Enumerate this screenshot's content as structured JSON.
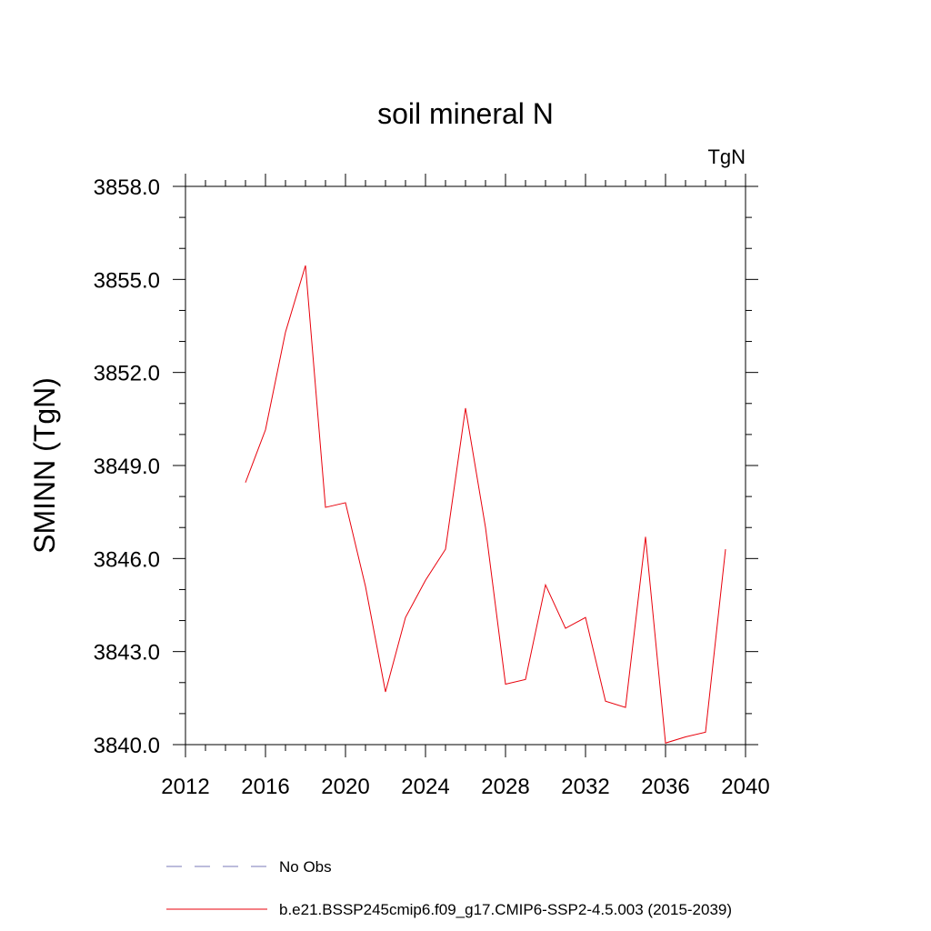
{
  "chart_data": {
    "type": "line",
    "title": "soil mineral N",
    "units": "TgN",
    "xlabel": "",
    "ylabel": "SMINN  (TgN)",
    "xlim": [
      2012,
      2040
    ],
    "ylim": [
      3840.0,
      3858.0
    ],
    "x_ticks": [
      2012,
      2016,
      2020,
      2024,
      2028,
      2032,
      2036,
      2040
    ],
    "x_tick_labels": [
      "2012",
      "2016",
      "2020",
      "2024",
      "2028",
      "2032",
      "2036",
      "2040"
    ],
    "y_ticks": [
      3840.0,
      3843.0,
      3846.0,
      3849.0,
      3852.0,
      3855.0,
      3858.0
    ],
    "y_tick_labels": [
      "3840.0",
      "3843.0",
      "3846.0",
      "3849.0",
      "3852.0",
      "3855.0",
      "3858.0"
    ],
    "x_minor_step": 1,
    "y_minor_step": 1,
    "grid": false,
    "legend_position": "bottom",
    "series": [
      {
        "name": "b.e21.BSSP245cmip6.f09_g17.CMIP6-SSP2-4.5.003 (2015-2039)",
        "color": "#e8000b",
        "dash": "solid",
        "x": [
          2015,
          2016,
          2017,
          2018,
          2019,
          2020,
          2021,
          2022,
          2023,
          2024,
          2025,
          2026,
          2027,
          2028,
          2029,
          2030,
          2031,
          2032,
          2033,
          2034,
          2035,
          2036,
          2037,
          2038,
          2039
        ],
        "values": [
          3848.45,
          3850.15,
          3853.3,
          3855.45,
          3847.65,
          3847.8,
          3845.1,
          3841.7,
          3844.1,
          3845.3,
          3846.3,
          3850.85,
          3847.0,
          3841.95,
          3842.1,
          3845.15,
          3843.75,
          3844.1,
          3841.4,
          3841.2,
          3846.7,
          3840.05,
          3840.25,
          3840.4,
          3846.3
        ]
      },
      {
        "name": "No Obs",
        "color": "#7a78b8",
        "dash": "dashed",
        "x": [],
        "values": []
      }
    ]
  }
}
